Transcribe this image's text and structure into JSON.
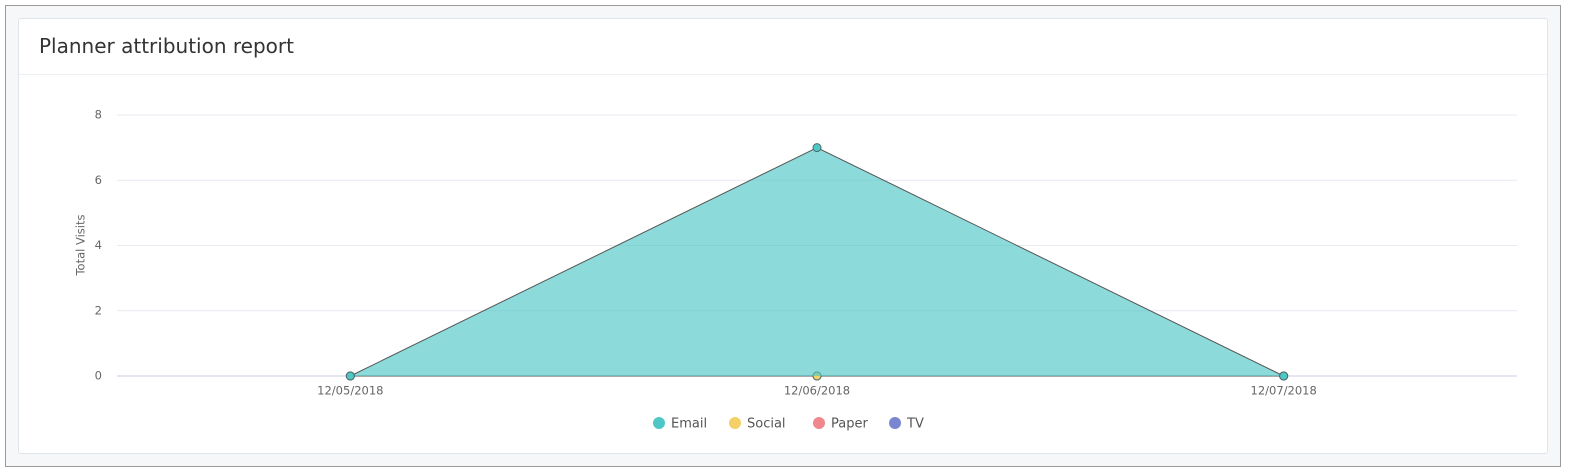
{
  "chart_data": {
    "type": "area",
    "title": "Planner attribution report",
    "y_label": "Total Visits",
    "x": [
      "12/05/2018",
      "12/06/2018",
      "12/07/2018"
    ],
    "series": [
      {
        "name": "Email",
        "color": "#4fc7c6",
        "values": [
          0,
          7,
          0
        ]
      },
      {
        "name": "Social",
        "color": "#f4d066",
        "values": [
          0,
          0,
          0
        ]
      },
      {
        "name": "Paper",
        "color": "#f0878d",
        "values": [
          0,
          0,
          0
        ]
      },
      {
        "name": "TV",
        "color": "#7b86d3",
        "values": [
          0,
          0,
          0
        ]
      }
    ],
    "ylim": [
      0,
      8
    ],
    "yticks": [
      0,
      2,
      4,
      6,
      8
    ],
    "grid": true
  }
}
